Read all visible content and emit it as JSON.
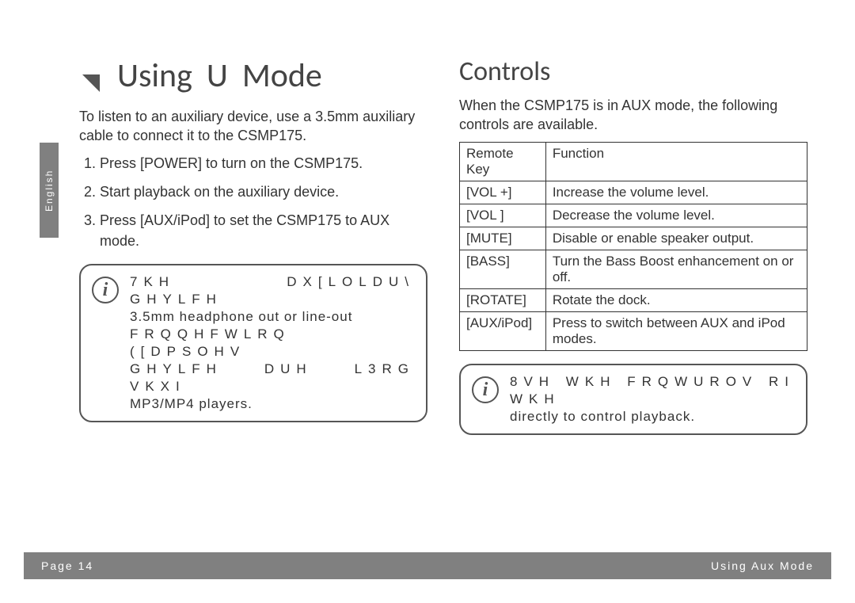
{
  "side_tab": "English",
  "title_part1": "Using",
  "title_part2": "U",
  "title_part3": "Mode",
  "left": {
    "intro": "To listen to an auxiliary device, use a 3.5mm auxiliary cable to connect it to the CSMP175.",
    "steps": [
      "Press [POWER] to turn on the CSMP175.",
      "Start playback on the auxiliary device.",
      "Press [AUX/iPod] to set the CSMP175 to AUX mode."
    ],
    "info_line1": "7KH  DX[LOLDU\\  GHYLFH",
    "info_line2": "3.5mm  headphone  out  or  line-out",
    "info_line3": "FRQQHFWLRQ  ([DPSOHV",
    "info_line4": "GHYLFH  DUH  L3RG  VKXI",
    "info_line5": "MP3/MP4 players."
  },
  "right": {
    "heading": "Controls",
    "intro": "When the CSMP175 is in AUX mode, the following controls are available.",
    "table": {
      "head_key": "Remote Key",
      "head_fn": "Function",
      "rows": [
        {
          "key": "[VOL +]",
          "fn": "Increase the volume level."
        },
        {
          "key": "[VOL ]",
          "fn": "Decrease the volume level."
        },
        {
          "key": "[MUTE]",
          "fn": "Disable or enable speaker output."
        },
        {
          "key": "[BASS]",
          "fn": "Turn the Bass Boost enhancement on or off."
        },
        {
          "key": "[ROTATE]",
          "fn": "Rotate the dock."
        },
        {
          "key": "[AUX/iPod]",
          "fn": "Press to switch between AUX and iPod modes."
        }
      ]
    },
    "info_line1": "8VH WKH FRQWUROV RI WKH",
    "info_line2": "directly to control playback."
  },
  "footer": {
    "left": "Page 14",
    "right": "Using Aux Mode"
  },
  "colors": {
    "footer_bg": "#808080",
    "border": "#333333",
    "text": "#333333"
  }
}
